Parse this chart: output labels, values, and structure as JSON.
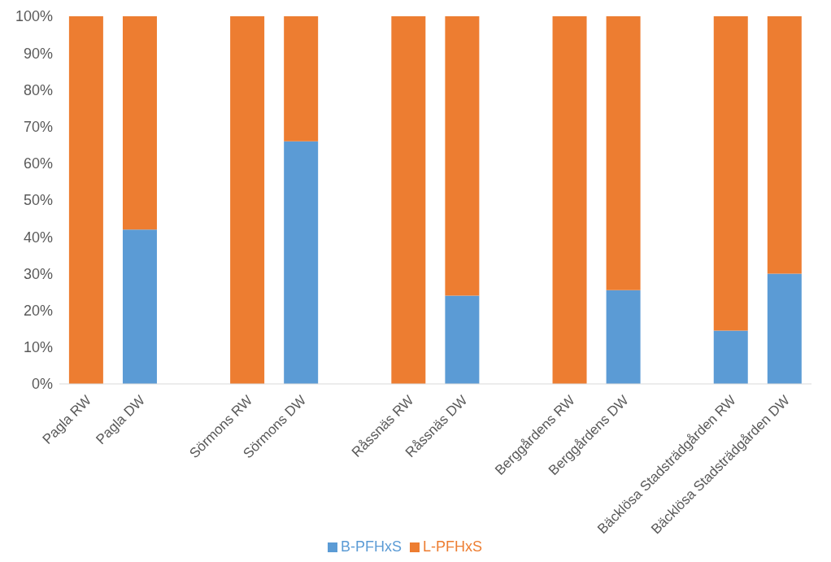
{
  "chart_data": {
    "type": "bar",
    "stacked": true,
    "categories": [
      "Pagla RW",
      "Pagla DW",
      null,
      "Sörmons RW",
      "Sörmons DW",
      null,
      "Råssnäs RW",
      "Råssnäs DW",
      null,
      "Berggårdens RW",
      "Berggårdens DW",
      null,
      "Bäcklösa Stadsträdgården RW",
      "Bäcklösa Stadsträdgården DW"
    ],
    "series": [
      {
        "name": "B-PFHxS",
        "color": "#5b9bd5",
        "values": [
          0,
          42,
          null,
          0,
          66,
          null,
          0,
          24,
          null,
          0,
          25.5,
          null,
          14.5,
          30
        ]
      },
      {
        "name": "L-PFHxS",
        "color": "#ed7d31",
        "values": [
          100,
          58,
          null,
          100,
          34,
          null,
          100,
          76,
          null,
          100,
          74.5,
          null,
          85.5,
          70
        ]
      }
    ],
    "ylim": [
      0,
      100
    ],
    "yticks": [
      {
        "value": 0,
        "label": "0%"
      },
      {
        "value": 10,
        "label": "10%"
      },
      {
        "value": 20,
        "label": "20%"
      },
      {
        "value": 30,
        "label": "30%"
      },
      {
        "value": 40,
        "label": "40%"
      },
      {
        "value": 50,
        "label": "50%"
      },
      {
        "value": 60,
        "label": "60%"
      },
      {
        "value": 70,
        "label": "70%"
      },
      {
        "value": 80,
        "label": "80%"
      },
      {
        "value": 90,
        "label": "90%"
      },
      {
        "value": 100,
        "label": "100%"
      }
    ],
    "grid": false,
    "legend": "bottom"
  }
}
